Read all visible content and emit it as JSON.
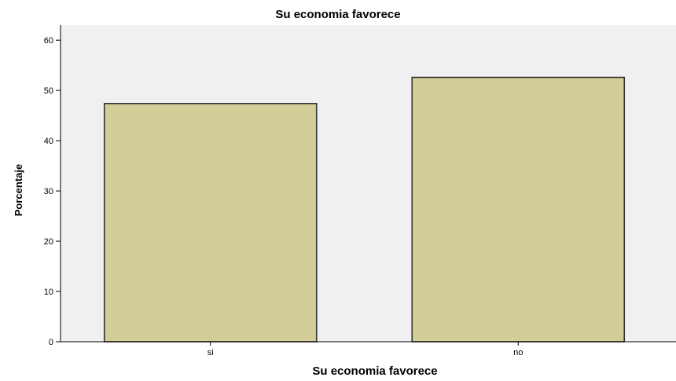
{
  "chart_data": {
    "type": "bar",
    "title": "Su economia favorece",
    "xlabel": "Su economia favorece",
    "ylabel": "Porcentaje",
    "categories": [
      "si",
      "no"
    ],
    "values": [
      47.4,
      52.6
    ],
    "ylim": [
      0,
      63
    ],
    "yticks": [
      "0",
      "10",
      "20",
      "30",
      "40",
      "50",
      "60"
    ],
    "grid": false,
    "legend": "none",
    "colors": {
      "plot_background": "#f0f0f0",
      "bar_fill": "#d3ce97",
      "bar_stroke": "#333333",
      "axis": "#000000"
    }
  }
}
